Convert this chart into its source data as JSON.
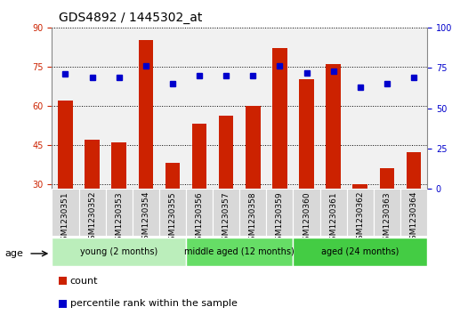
{
  "title": "GDS4892 / 1445302_at",
  "samples": [
    "GSM1230351",
    "GSM1230352",
    "GSM1230353",
    "GSM1230354",
    "GSM1230355",
    "GSM1230356",
    "GSM1230357",
    "GSM1230358",
    "GSM1230359",
    "GSM1230360",
    "GSM1230361",
    "GSM1230362",
    "GSM1230363",
    "GSM1230364"
  ],
  "counts": [
    62,
    47,
    46,
    85,
    38,
    53,
    56,
    60,
    82,
    70,
    76,
    30,
    36,
    42
  ],
  "percentiles": [
    71,
    69,
    69,
    76,
    65,
    70,
    70,
    70,
    76,
    72,
    73,
    63,
    65,
    69
  ],
  "ylim_left": [
    28,
    90
  ],
  "yticks_left": [
    30,
    45,
    60,
    75,
    90
  ],
  "ylim_right": [
    0,
    100
  ],
  "yticks_right": [
    0,
    25,
    50,
    75,
    100
  ],
  "bar_color": "#cc2200",
  "dot_color": "#0000cc",
  "groups": [
    {
      "label": "young (2 months)",
      "start": 0,
      "end": 5
    },
    {
      "label": "middle aged (12 months)",
      "start": 5,
      "end": 9
    },
    {
      "label": "aged (24 months)",
      "start": 9,
      "end": 14
    }
  ],
  "group_colors": [
    "#bbeebb",
    "#66dd66",
    "#44cc44"
  ],
  "age_label": "age",
  "legend_count_label": "count",
  "legend_percentile_label": "percentile rank within the sample",
  "grid_color": "#000000",
  "background_color": "#ffffff",
  "plot_bg_color": "#ffffff",
  "title_fontsize": 10,
  "axis_fontsize": 8,
  "tick_fontsize": 7
}
